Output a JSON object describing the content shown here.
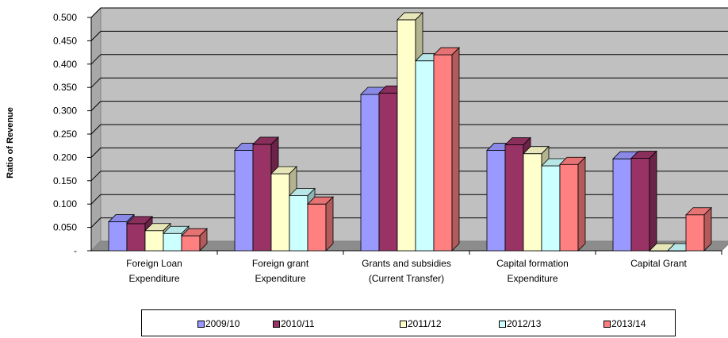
{
  "chart_data": {
    "type": "bar",
    "title": "",
    "xlabel": "",
    "ylabel": "Ratio of Revenue",
    "ylim": [
      0,
      0.5
    ],
    "yticks": [
      "-",
      "0.050",
      "0.100",
      "0.150",
      "0.200",
      "0.250",
      "0.300",
      "0.350",
      "0.400",
      "0.450",
      "0.500"
    ],
    "categories": [
      [
        "Foreign Loan",
        "Expenditure"
      ],
      [
        "Foreign grant",
        "Expenditure"
      ],
      [
        "Grants and subsidies",
        "(Current Transfer)"
      ],
      [
        "Capital formation",
        "Expenditure"
      ],
      [
        "Capital Grant"
      ]
    ],
    "series": [
      {
        "name": "2009/10",
        "color": "#9999FF",
        "values": [
          0.062,
          0.215,
          0.335,
          0.215,
          0.197
        ]
      },
      {
        "name": "2010/11",
        "color": "#993366",
        "values": [
          0.058,
          0.228,
          0.338,
          0.227,
          0.198
        ]
      },
      {
        "name": "2011/12",
        "color": "#FFFFCC",
        "values": [
          0.043,
          0.165,
          0.495,
          0.208,
          0.0
        ]
      },
      {
        "name": "2012/13",
        "color": "#CCFFFF",
        "values": [
          0.037,
          0.118,
          0.407,
          0.182,
          0.0
        ]
      },
      {
        "name": "2013/14",
        "color": "#FF8080",
        "values": [
          0.032,
          0.1,
          0.42,
          0.185,
          0.077
        ]
      }
    ],
    "grid": true,
    "legend_position": "bottom"
  }
}
